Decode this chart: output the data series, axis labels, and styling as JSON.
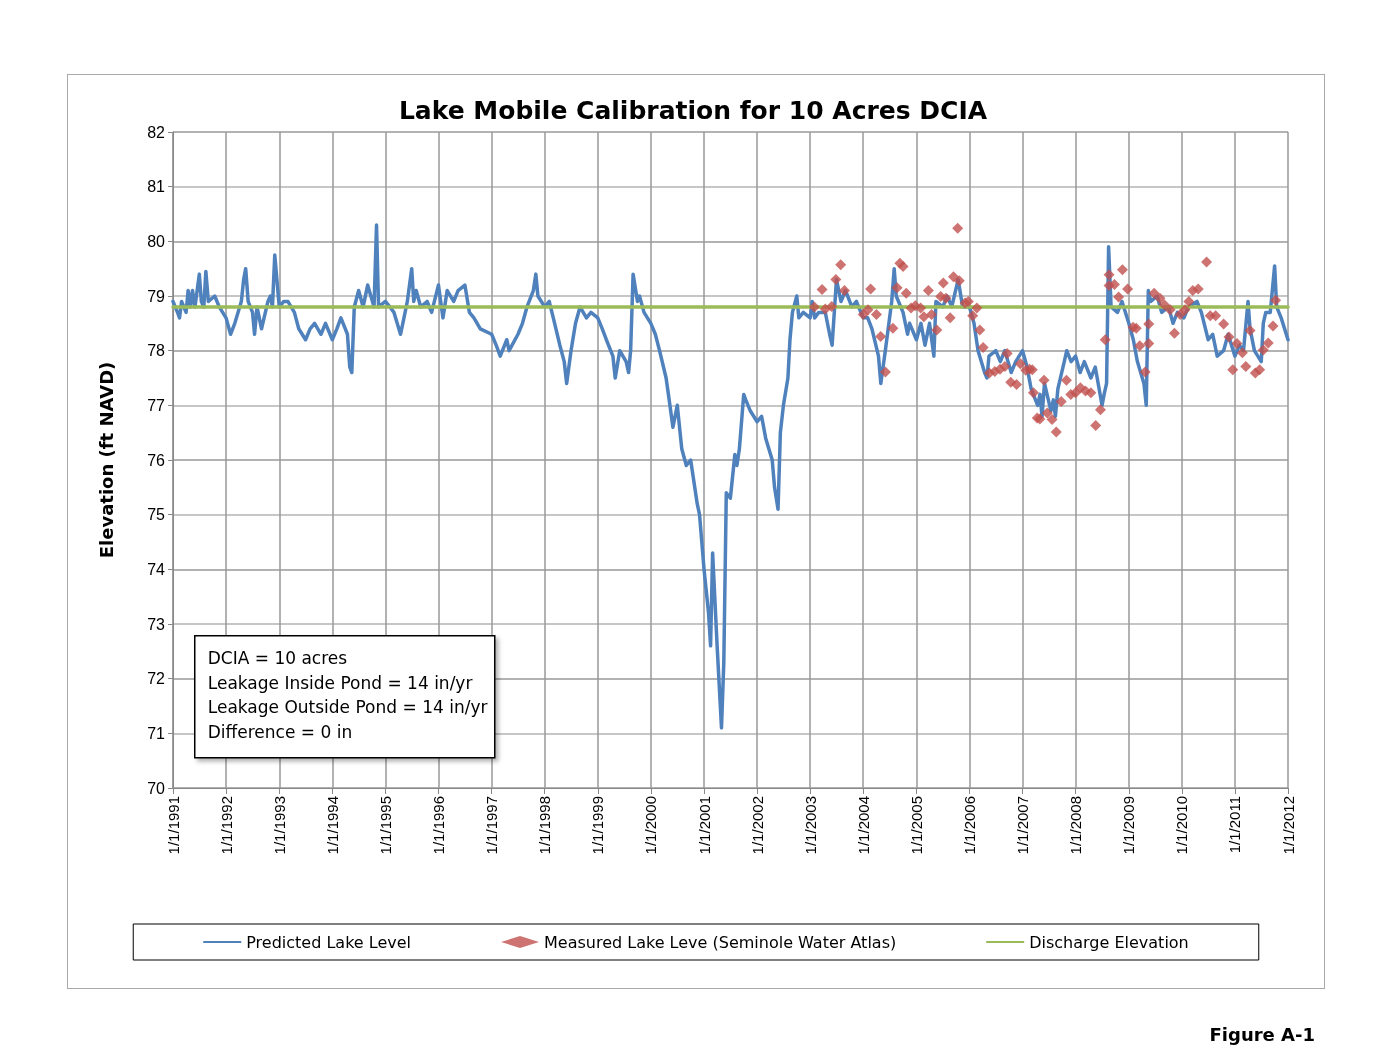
{
  "chart_data": {
    "type": "line",
    "title": "Lake Mobile Calibration for 10 Acres DCIA",
    "ylabel": "Elevation (ft NAVD)",
    "xlim": [
      "1991-01-01",
      "2012-01-01"
    ],
    "xticks": [
      {
        "value": "1991-01-01",
        "label": "1/1/1991"
      },
      {
        "value": "1992-01-01",
        "label": "1/1/1992"
      },
      {
        "value": "1993-01-01",
        "label": "1/1/1993"
      },
      {
        "value": "1994-01-01",
        "label": "1/1/1994"
      },
      {
        "value": "1995-01-01",
        "label": "1/1/1995"
      },
      {
        "value": "1996-01-01",
        "label": "1/1/1996"
      },
      {
        "value": "1997-01-01",
        "label": "1/1/1997"
      },
      {
        "value": "1998-01-01",
        "label": "1/1/1998"
      },
      {
        "value": "1999-01-01",
        "label": "1/1/1999"
      },
      {
        "value": "2000-01-01",
        "label": "1/1/2000"
      },
      {
        "value": "2001-01-01",
        "label": "1/1/2001"
      },
      {
        "value": "2002-01-01",
        "label": "1/1/2002"
      },
      {
        "value": "2003-01-01",
        "label": "1/1/2003"
      },
      {
        "value": "2004-01-01",
        "label": "1/1/2004"
      },
      {
        "value": "2005-01-01",
        "label": "1/1/2005"
      },
      {
        "value": "2006-01-01",
        "label": "1/1/2006"
      },
      {
        "value": "2007-01-01",
        "label": "1/1/2007"
      },
      {
        "value": "2008-01-01",
        "label": "1/1/2008"
      },
      {
        "value": "2009-01-01",
        "label": "1/1/2009"
      },
      {
        "value": "2010-01-01",
        "label": "1/1/2010"
      },
      {
        "value": "2011-01-01",
        "label": "1/1/2011"
      },
      {
        "value": "2012-01-01",
        "label": "1/1/2012"
      }
    ],
    "ylim": [
      70,
      82
    ],
    "yticks": [
      70,
      71,
      72,
      73,
      74,
      75,
      76,
      77,
      78,
      79,
      80,
      81,
      82
    ],
    "grid": true,
    "legend": "bottom",
    "annotations": [
      "DCIA = 10 acres",
      "Leakage Inside Pond = 14 in/yr",
      "Leakage Outside Pond = 14 in/yr",
      "Difference = 0 in",
      "Figure A-1"
    ],
    "series": [
      {
        "name": "Predicted Lake Level",
        "color": "#4f81bd",
        "marker": "none",
        "line_style": "solid",
        "x": [
          "1991-01-01",
          "1991-02-01",
          "1991-02-15",
          "1991-03-01",
          "1991-04-01",
          "1991-04-15",
          "1991-05-01",
          "1991-05-15",
          "1991-06-01",
          "1991-07-01",
          "1991-07-15",
          "1991-08-01",
          "1991-08-15",
          "1991-09-01",
          "1991-10-15",
          "1991-11-15",
          "1992-01-01",
          "1992-02-01",
          "1992-03-01",
          "1992-04-15",
          "1992-05-01",
          "1992-05-15",
          "1992-06-01",
          "1992-07-01",
          "1992-07-15",
          "1992-08-01",
          "1992-09-01",
          "1992-10-15",
          "1992-11-01",
          "1992-11-15",
          "1992-12-01",
          "1993-01-01",
          "1993-02-01",
          "1993-03-01",
          "1993-04-15",
          "1993-05-15",
          "1993-07-01",
          "1993-08-01",
          "1993-09-01",
          "1993-10-15",
          "1993-11-15",
          "1994-01-01",
          "1994-02-01",
          "1994-03-01",
          "1994-04-15",
          "1994-05-01",
          "1994-05-15",
          "1994-06-01",
          "1994-07-01",
          "1994-08-01",
          "1994-09-01",
          "1994-10-15",
          "1994-11-01",
          "1994-11-15",
          "1995-01-01",
          "1995-02-01",
          "1995-03-01",
          "1995-04-15",
          "1995-05-01",
          "1995-06-01",
          "1995-07-01",
          "1995-07-15",
          "1995-08-01",
          "1995-09-01",
          "1995-10-15",
          "1995-11-15",
          "1996-01-01",
          "1996-02-01",
          "1996-03-01",
          "1996-04-15",
          "1996-05-15",
          "1996-07-01",
          "1996-08-01",
          "1996-09-01",
          "1996-10-15",
          "1997-01-01",
          "1997-02-01",
          "1997-03-01",
          "1997-04-15",
          "1997-05-01",
          "1997-07-01",
          "1997-08-01",
          "1997-09-01",
          "1997-10-15",
          "1997-11-01",
          "1997-11-15",
          "1998-01-01",
          "1998-02-01",
          "1998-03-01",
          "1998-04-15",
          "1998-05-15",
          "1998-06-01",
          "1998-07-01",
          "1998-08-01",
          "1998-09-01",
          "1998-10-15",
          "1998-11-15",
          "1999-01-01",
          "1999-02-01",
          "1999-03-01",
          "1999-04-15",
          "1999-05-01",
          "1999-06-01",
          "1999-07-15",
          "1999-08-01",
          "1999-08-15",
          "1999-09-01",
          "1999-10-01",
          "1999-10-15",
          "1999-11-15",
          "2000-01-01",
          "2000-02-01",
          "2000-03-01",
          "2000-04-15",
          "2000-05-01",
          "2000-06-01",
          "2000-07-01",
          "2000-08-01",
          "2000-09-01",
          "2000-10-01",
          "2000-11-15",
          "2000-12-01",
          "2001-01-01",
          "2001-02-01",
          "2001-02-15",
          "2001-03-01",
          "2001-04-01",
          "2001-05-01",
          "2001-05-17",
          "2001-06-03",
          "2001-07-01",
          "2001-08-01",
          "2001-08-15",
          "2001-09-01",
          "2001-10-01",
          "2001-10-15",
          "2001-11-15",
          "2002-01-01",
          "2002-02-01",
          "2002-03-01",
          "2002-04-15",
          "2002-05-01",
          "2002-05-25",
          "2002-06-10",
          "2002-07-01",
          "2002-08-01",
          "2002-08-15",
          "2002-09-01",
          "2002-10-01",
          "2002-10-15",
          "2002-11-15",
          "2003-01-01",
          "2003-01-15",
          "2003-02-01",
          "2003-03-01",
          "2003-04-15",
          "2003-05-15",
          "2003-06-01",
          "2003-07-01",
          "2003-08-01",
          "2003-09-01",
          "2003-10-15",
          "2003-11-15",
          "2004-01-01",
          "2004-02-01",
          "2004-03-01",
          "2004-04-15",
          "2004-05-01",
          "2004-06-01",
          "2004-07-15",
          "2004-08-01",
          "2004-08-15",
          "2004-10-01",
          "2004-11-01",
          "2004-11-15",
          "2005-01-01",
          "2005-02-01",
          "2005-03-01",
          "2005-04-01",
          "2005-05-01",
          "2005-05-15",
          "2005-07-01",
          "2005-08-01",
          "2005-09-01",
          "2005-10-15",
          "2005-11-15",
          "2006-01-01",
          "2006-02-01",
          "2006-03-01",
          "2006-04-15",
          "2006-05-01",
          "2006-05-15",
          "2006-07-01",
          "2006-08-01",
          "2006-09-01",
          "2006-10-15",
          "2006-11-15",
          "2007-01-01",
          "2007-02-01",
          "2007-03-01",
          "2007-04-15",
          "2007-05-01",
          "2007-05-15",
          "2007-06-01",
          "2007-07-15",
          "2007-08-01",
          "2007-08-15",
          "2007-09-01",
          "2007-10-15",
          "2007-11-01",
          "2007-12-01",
          "2008-01-01",
          "2008-02-01",
          "2008-03-01",
          "2008-04-15",
          "2008-05-15",
          "2008-07-01",
          "2008-07-15",
          "2008-08-01",
          "2008-08-15",
          "2008-09-01",
          "2008-10-15",
          "2008-11-15",
          "2009-01-01",
          "2009-02-01",
          "2009-03-01",
          "2009-04-15",
          "2009-05-01",
          "2009-05-15",
          "2009-06-01",
          "2009-07-15",
          "2009-08-15",
          "2009-10-01",
          "2009-11-01",
          "2009-12-01",
          "2010-01-15",
          "2010-02-15",
          "2010-04-15",
          "2010-05-15",
          "2010-07-01",
          "2010-08-01",
          "2010-09-01",
          "2010-10-15",
          "2010-11-15",
          "2011-01-01",
          "2011-02-01",
          "2011-03-01",
          "2011-04-01",
          "2011-04-15",
          "2011-05-15",
          "2011-07-01",
          "2011-07-15",
          "2011-08-01",
          "2011-09-01",
          "2011-10-01",
          "2011-10-15",
          "2011-11-15",
          "2012-01-01"
        ],
        "values": [
          78.9,
          78.7,
          78.6,
          78.9,
          78.7,
          79.1,
          78.8,
          79.1,
          78.8,
          79.4,
          78.9,
          78.8,
          79.45,
          78.9,
          79.0,
          78.8,
          78.6,
          78.3,
          78.5,
          78.9,
          79.3,
          79.5,
          78.9,
          78.7,
          78.3,
          78.8,
          78.4,
          78.9,
          79.0,
          78.8,
          79.75,
          78.8,
          78.9,
          78.9,
          78.7,
          78.4,
          78.2,
          78.4,
          78.5,
          78.3,
          78.5,
          78.2,
          78.4,
          78.6,
          78.3,
          77.7,
          77.6,
          78.8,
          79.1,
          78.8,
          79.2,
          78.8,
          80.3,
          78.8,
          78.9,
          78.8,
          78.7,
          78.3,
          78.5,
          78.9,
          79.5,
          78.9,
          79.1,
          78.8,
          78.9,
          78.7,
          79.2,
          78.6,
          79.1,
          78.9,
          79.1,
          79.2,
          78.7,
          78.6,
          78.4,
          78.3,
          78.1,
          77.9,
          78.2,
          78.0,
          78.3,
          78.5,
          78.8,
          79.1,
          79.4,
          79.0,
          78.8,
          78.9,
          78.6,
          78.1,
          77.8,
          77.4,
          78.0,
          78.5,
          78.8,
          78.6,
          78.7,
          78.6,
          78.4,
          78.2,
          77.9,
          77.5,
          78.0,
          77.8,
          77.6,
          78.0,
          79.4,
          78.9,
          79.0,
          78.7,
          78.5,
          78.3,
          78.0,
          77.5,
          77.2,
          76.6,
          77.0,
          76.2,
          75.9,
          76.0,
          75.2,
          75.0,
          74.0,
          73.2,
          72.6,
          74.3,
          72.6,
          71.1,
          72.3,
          75.4,
          75.3,
          76.1,
          75.9,
          76.2,
          77.2,
          77.1,
          76.9,
          76.7,
          76.8,
          76.4,
          76.0,
          75.5,
          75.1,
          76.5,
          77.0,
          77.5,
          78.2,
          78.7,
          79.0,
          78.6,
          78.7,
          78.6,
          78.9,
          78.6,
          78.7,
          78.7,
          78.3,
          78.1,
          79.3,
          78.9,
          79.1,
          78.8,
          78.9,
          78.6,
          78.6,
          78.4,
          77.9,
          77.4,
          78.0,
          78.9,
          79.5,
          79.0,
          78.7,
          78.3,
          78.5,
          78.2,
          78.5,
          78.1,
          78.5,
          77.9,
          78.9,
          78.8,
          79.0,
          78.8,
          79.3,
          78.8,
          78.8,
          78.5,
          78.0,
          77.6,
          77.5,
          77.9,
          78.0,
          77.8,
          78.0,
          77.6,
          77.8,
          78.0,
          77.7,
          77.3,
          77.0,
          77.2,
          76.8,
          77.4,
          76.9,
          77.1,
          76.8,
          77.3,
          77.8,
          78.0,
          77.8,
          77.9,
          77.6,
          77.8,
          77.5,
          77.7,
          77.0,
          77.2,
          77.4,
          79.9,
          78.8,
          78.7,
          78.9,
          78.5,
          78.2,
          77.8,
          77.4,
          77.0,
          79.1,
          78.9,
          79.0,
          78.7,
          78.8,
          78.5,
          78.7,
          78.6,
          78.8,
          78.9,
          78.7,
          78.2,
          78.3,
          77.9,
          78.0,
          78.3,
          77.9,
          78.1,
          78.0,
          78.9,
          78.4,
          78.0,
          77.8,
          78.5,
          78.7,
          78.7,
          79.55,
          78.8,
          78.6,
          78.2
        ]
      },
      {
        "name": "Measured Lake Leve (Seminole Water Atlas)",
        "type": "scatter",
        "color": "#c0504d",
        "marker": "diamond",
        "x": [
          "2003-01-30",
          "2003-03-24",
          "2003-04-15",
          "2003-05-29",
          "2003-06-27",
          "2003-07-30",
          "2003-08-25",
          "2004-01-01",
          "2004-02-03",
          "2004-02-21",
          "2004-04-01",
          "2004-04-30",
          "2004-06-02",
          "2004-07-23",
          "2004-08-21",
          "2004-09-09",
          "2004-10-01",
          "2004-10-23",
          "2004-11-25",
          "2004-12-24",
          "2005-01-30",
          "2005-02-21",
          "2005-03-24",
          "2005-04-15",
          "2005-05-21",
          "2005-06-17",
          "2005-07-05",
          "2005-07-23",
          "2005-08-21",
          "2005-09-13",
          "2005-10-12",
          "2005-10-23",
          "2005-12-02",
          "2005-12-24",
          "2006-01-23",
          "2006-02-21",
          "2006-03-13",
          "2006-04-05",
          "2006-05-18",
          "2006-06-24",
          "2006-07-30",
          "2006-09-02",
          "2006-09-17",
          "2006-10-12",
          "2006-11-21",
          "2006-12-17",
          "2007-01-23",
          "2007-02-18",
          "2007-03-09",
          "2007-03-17",
          "2007-04-12",
          "2007-04-30",
          "2007-05-29",
          "2007-06-20",
          "2007-07-23",
          "2007-08-21",
          "2007-09-24",
          "2007-10-30",
          "2007-11-29",
          "2008-01-01",
          "2008-02-03",
          "2008-03-09",
          "2008-04-15",
          "2008-05-18",
          "2008-06-20",
          "2008-07-23",
          "2008-08-18",
          "2008-08-18",
          "2008-09-24",
          "2008-10-23",
          "2008-11-18",
          "2008-12-24",
          "2009-01-30",
          "2009-02-21",
          "2009-03-17",
          "2009-04-23",
          "2009-05-18",
          "2009-05-18",
          "2009-06-24",
          "2009-08-03",
          "2009-09-02",
          "2009-10-12",
          "2009-11-11",
          "2009-12-20",
          "2010-01-23",
          "2010-02-18",
          "2010-03-17",
          "2010-04-23",
          "2010-06-20",
          "2010-07-15",
          "2010-08-21",
          "2010-10-15",
          "2010-11-21",
          "2010-12-17",
          "2011-01-15",
          "2011-02-21",
          "2011-03-17",
          "2011-04-15",
          "2011-05-21",
          "2011-06-20",
          "2011-07-15",
          "2011-08-18",
          "2011-09-20",
          "2011-10-08"
        ],
        "values": [
          78.8,
          79.12,
          78.76,
          78.81,
          79.3,
          79.57,
          79.1,
          78.66,
          78.75,
          79.13,
          78.66,
          78.26,
          77.61,
          78.41,
          79.15,
          79.6,
          79.54,
          79.05,
          78.78,
          78.82,
          78.78,
          78.62,
          79.1,
          78.66,
          78.38,
          78.99,
          79.24,
          78.96,
          78.6,
          79.35,
          80.24,
          79.28,
          78.87,
          78.9,
          78.64,
          78.78,
          78.38,
          78.06,
          77.59,
          77.62,
          77.66,
          77.71,
          77.95,
          77.42,
          77.38,
          77.76,
          77.64,
          77.66,
          77.65,
          77.23,
          76.77,
          76.75,
          77.46,
          76.86,
          76.74,
          76.51,
          77.07,
          77.46,
          77.2,
          77.23,
          77.32,
          77.26,
          77.23,
          76.63,
          76.92,
          78.2,
          79.39,
          79.19,
          79.21,
          78.98,
          79.48,
          79.13,
          78.43,
          78.41,
          78.09,
          77.61,
          78.49,
          78.13,
          79.05,
          78.96,
          78.84,
          78.75,
          78.32,
          78.66,
          78.75,
          78.9,
          79.1,
          79.13,
          79.62,
          78.64,
          78.64,
          78.49,
          78.25,
          77.65,
          78.13,
          77.96,
          77.71,
          78.37,
          77.59,
          77.65,
          78.01,
          78.14,
          78.45,
          78.92
        ]
      },
      {
        "name": "Discharge Elevation",
        "color": "#9bbb59",
        "marker": "none",
        "line_style": "solid",
        "x": [
          "1991-01-01",
          "2012-01-01"
        ],
        "values": [
          78.8,
          78.8
        ]
      }
    ]
  }
}
